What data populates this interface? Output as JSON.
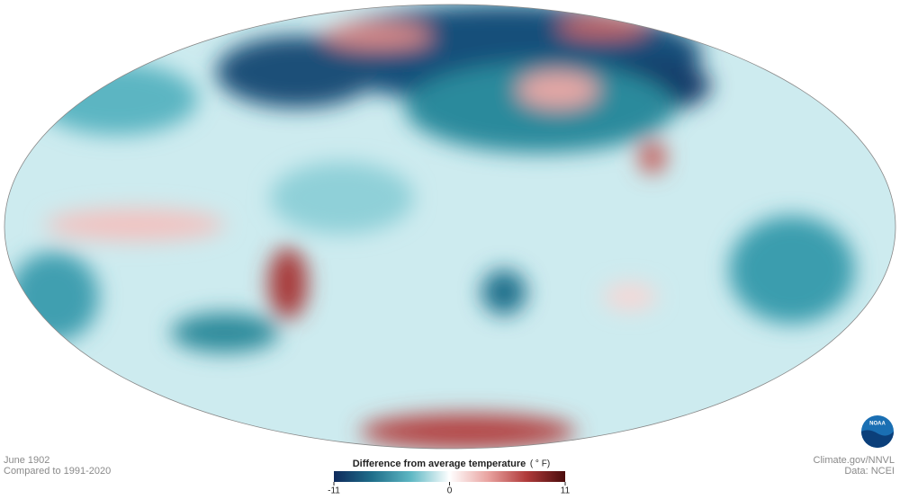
{
  "map": {
    "date": "June 1902",
    "baseline": "Compared to 1991-2020",
    "credit": "Climate.gov/NNVL",
    "source": "Data: NCEI",
    "logo": "NOAA",
    "colorbar": {
      "title": "Difference from average temperature",
      "unit": "( ° F)",
      "lim": [
        -11,
        11
      ],
      "ticks": [
        -11,
        0,
        11
      ],
      "colors": [
        "#0f2a5c",
        "#1f6f8b",
        "#5fb8c4",
        "#ffffff",
        "#e9a3a0",
        "#b03a3a",
        "#4a0c0c"
      ]
    }
  }
}
